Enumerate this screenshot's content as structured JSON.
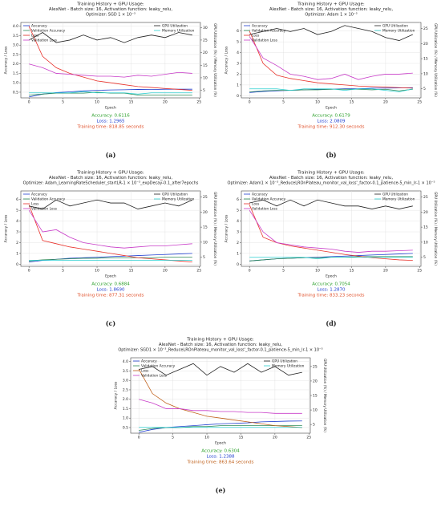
{
  "chart_data": [
    {
      "type": "line",
      "title": [
        "Training History + GPU Usage:",
        "AlexNet - Batch size: 16, Activation function: leaky_relu,",
        "Optimizer: SGD 1 × 10⁻³"
      ],
      "xlabel": "Epoch",
      "ylabel": "Accuracy / Loss",
      "y2label": "GPU Utilization (%) / Memory Utilization (%)",
      "x": [
        0,
        2,
        4,
        6,
        8,
        10,
        12,
        14,
        16,
        18,
        20,
        22,
        24
      ],
      "xlim": [
        -1.2,
        25.2
      ],
      "xticks": [
        0,
        5,
        10,
        15,
        20,
        25
      ],
      "ylim": [
        0.2,
        4.2
      ],
      "yticks": [
        0.5,
        {
          "value": 1,
          "label": "1.0"
        },
        1.5,
        {
          "value": 2,
          "label": "2.0"
        },
        2.5,
        {
          "value": 3,
          "label": "3.0"
        },
        3.5,
        {
          "value": 4,
          "label": "4.0"
        }
      ],
      "y2lim": [
        2,
        32
      ],
      "y2ticks": [
        5,
        10,
        15,
        20,
        25,
        30
      ],
      "grid": true,
      "legend": "upper left",
      "legend_y2": "upper right",
      "series": [
        {
          "name": "Accuracy",
          "color": "#1f3fd0",
          "values": [
            0.25,
            0.4,
            0.48,
            0.52,
            0.57,
            0.6,
            0.62,
            0.63,
            0.65,
            0.64,
            0.66,
            0.66,
            0.66
          ]
        },
        {
          "name": "Validation Accuracy",
          "color": "#2e8b57",
          "values": [
            0.35,
            0.4,
            0.45,
            0.45,
            0.45,
            0.5,
            0.45,
            0.45,
            0.35,
            0.35,
            0.35,
            0.35,
            0.35
          ]
        },
        {
          "name": "Loss",
          "color": "#e8312a",
          "values": [
            4.0,
            2.4,
            1.8,
            1.5,
            1.3,
            1.1,
            1.0,
            0.9,
            0.8,
            0.75,
            0.7,
            0.65,
            0.6
          ]
        },
        {
          "name": "Validation Loss",
          "color": "#c83cc8",
          "values": [
            2.0,
            1.8,
            1.5,
            1.45,
            1.4,
            1.35,
            1.35,
            1.3,
            1.4,
            1.35,
            1.45,
            1.55,
            1.5
          ]
        },
        {
          "name": "GPU Utilization",
          "color": "#222222",
          "axis": "y2",
          "values": [
            25,
            28,
            24,
            25,
            27,
            25,
            26,
            24,
            26,
            27,
            26,
            28,
            27
          ]
        },
        {
          "name": "Memory Utilization",
          "color": "#2ccfd0",
          "axis": "y2",
          "values": [
            4,
            4,
            4,
            4,
            4.5,
            4,
            4,
            4,
            3.5,
            4,
            4,
            4,
            4
          ]
        }
      ],
      "annotations": [
        {
          "text": "Accuracy: 0.6116",
          "color": "#2ca02c"
        },
        {
          "text": "Loss: 1.2965",
          "color": "#1f3fd0"
        },
        {
          "text": "Training time: 818.85 seconds",
          "color": "#e0502a"
        }
      ],
      "caption": "(a)"
    },
    {
      "type": "line",
      "title": [
        "Training History + GPU Usage:",
        "AlexNet - Batch size: 16, Activation function: leaky_relu,",
        "Optimizer: Adam 1 × 10⁻³"
      ],
      "xlabel": "Epoch",
      "ylabel": "Accuracy / Loss",
      "y2label": "GPU Utilization (%) / Memory Utilization (%)",
      "x": [
        0,
        2,
        4,
        6,
        8,
        10,
        12,
        14,
        16,
        18,
        20,
        22,
        24
      ],
      "xlim": [
        -1.2,
        25.2
      ],
      "xticks": [
        0,
        5,
        10,
        15,
        20,
        25
      ],
      "ylim": [
        -0.2,
        6.8
      ],
      "yticks": [
        0,
        1,
        2,
        3,
        4,
        5,
        6
      ],
      "y2lim": [
        2,
        27
      ],
      "y2ticks": [
        5,
        10,
        15,
        20,
        25
      ],
      "grid": true,
      "legend": "upper left",
      "legend_y2": "upper right",
      "series": [
        {
          "name": "Accuracy",
          "color": "#1f3fd0",
          "values": [
            0.3,
            0.4,
            0.45,
            0.5,
            0.55,
            0.6,
            0.6,
            0.65,
            0.65,
            0.7,
            0.7,
            0.72,
            0.75
          ]
        },
        {
          "name": "Validation Accuracy",
          "color": "#2e8b57",
          "values": [
            0.35,
            0.45,
            0.5,
            0.5,
            0.55,
            0.55,
            0.6,
            0.6,
            0.6,
            0.55,
            0.6,
            0.45,
            0.6
          ]
        },
        {
          "name": "Loss",
          "color": "#e8312a",
          "values": [
            6.0,
            3.0,
            1.9,
            1.6,
            1.4,
            1.2,
            1.1,
            1.0,
            0.9,
            0.85,
            0.8,
            0.75,
            0.7
          ]
        },
        {
          "name": "Validation Loss",
          "color": "#c83cc8",
          "values": [
            5.5,
            3.5,
            2.8,
            2.0,
            1.8,
            1.5,
            1.6,
            2.0,
            1.5,
            1.8,
            2.0,
            2.0,
            2.1
          ]
        },
        {
          "name": "GPU Utilization",
          "color": "#222222",
          "axis": "y2",
          "values": [
            23,
            24,
            25,
            24,
            25,
            23,
            24,
            26,
            25,
            24,
            22,
            21,
            23
          ]
        },
        {
          "name": "Memory Utilization",
          "color": "#2ccfd0",
          "axis": "y2",
          "values": [
            5,
            5,
            5,
            4.5,
            5,
            5,
            5,
            4.5,
            5,
            5,
            4.5,
            4,
            5
          ]
        }
      ],
      "annotations": [
        {
          "text": "Accuracy: 0.6179",
          "color": "#2ca02c"
        },
        {
          "text": "Loss: 2.0809",
          "color": "#1f3fd0"
        },
        {
          "text": "Training time: 912.30 seconds",
          "color": "#e0502a"
        }
      ],
      "caption": "(b)"
    },
    {
      "type": "line",
      "title": [
        "Training History + GPU Usage:",
        "AlexNet - Batch size: 16, Activation function: leaky_relu,",
        "Optimizer: Adam_LearningRateScheduler_startLR-1 × 10⁻³_expDecay-0.1_after7epochs"
      ],
      "xlabel": "Epoch",
      "ylabel": "Accuracy / Loss",
      "y2label": "GPU Utilization (%) / Memory Utilization (%)",
      "x": [
        0,
        2,
        4,
        6,
        8,
        10,
        12,
        14,
        16,
        18,
        20,
        22,
        24
      ],
      "xlim": [
        -1.2,
        25.2
      ],
      "xticks": [
        0,
        5,
        10,
        15,
        20,
        25
      ],
      "ylim": [
        -0.2,
        6.8
      ],
      "yticks": [
        0,
        1,
        2,
        3,
        4,
        5,
        6
      ],
      "y2lim": [
        2,
        27
      ],
      "y2ticks": [
        5,
        10,
        15,
        20,
        25
      ],
      "grid": true,
      "legend": "upper left",
      "legend_y2": "upper right",
      "series": [
        {
          "name": "Accuracy",
          "color": "#1f3fd0",
          "values": [
            0.2,
            0.35,
            0.45,
            0.55,
            0.6,
            0.65,
            0.7,
            0.75,
            0.8,
            0.85,
            0.9,
            0.95,
            1.0
          ]
        },
        {
          "name": "Validation Accuracy",
          "color": "#2e8b57",
          "values": [
            0.3,
            0.4,
            0.45,
            0.5,
            0.55,
            0.55,
            0.6,
            0.6,
            0.6,
            0.6,
            0.65,
            0.65,
            0.65
          ]
        },
        {
          "name": "Loss",
          "color": "#e8312a",
          "values": [
            5.5,
            2.2,
            1.9,
            1.6,
            1.4,
            1.2,
            1.0,
            0.8,
            0.6,
            0.5,
            0.4,
            0.3,
            0.2
          ]
        },
        {
          "name": "Validation Loss",
          "color": "#c83cc8",
          "values": [
            5.0,
            3.0,
            3.2,
            2.5,
            2.0,
            1.8,
            1.6,
            1.5,
            1.6,
            1.7,
            1.7,
            1.8,
            1.9
          ]
        },
        {
          "name": "GPU Utilization",
          "color": "#222222",
          "axis": "y2",
          "values": [
            22,
            21,
            24,
            22,
            23,
            24,
            23,
            23,
            21,
            22,
            23,
            22,
            24
          ]
        },
        {
          "name": "Memory Utilization",
          "color": "#2ccfd0",
          "axis": "y2",
          "values": [
            4,
            4,
            4,
            4,
            4,
            4,
            4,
            4,
            4,
            4,
            4,
            4,
            4
          ]
        }
      ],
      "annotations": [
        {
          "text": "Accuracy: 0.6884",
          "color": "#2ca02c"
        },
        {
          "text": "Loss: 1.8690",
          "color": "#1f3fd0"
        },
        {
          "text": "Training time: 877.31 seconds",
          "color": "#e0502a"
        }
      ],
      "caption": "(c)"
    },
    {
      "type": "line",
      "title": [
        "Training History + GPU Usage:",
        "AlexNet - Batch size: 16, Activation function: leaky_relu,",
        "Optimizer: Adam1 × 10⁻³_ReduceLROnPlateau_monitor_val_loss'_factor-0.1_patience-5_min_lr-1 × 10⁻⁵"
      ],
      "xlabel": "Epoch",
      "ylabel": "Accuracy / Loss",
      "y2label": "GPU Utilization (%) / Memory Utilization (%)",
      "x": [
        0,
        2,
        4,
        6,
        8,
        10,
        12,
        14,
        16,
        18,
        20,
        22,
        24
      ],
      "xlim": [
        -1.2,
        25.2
      ],
      "xticks": [
        0,
        5,
        10,
        15,
        20,
        25
      ],
      "ylim": [
        -0.2,
        6.8
      ],
      "yticks": [
        0,
        1,
        2,
        3,
        4,
        5,
        6
      ],
      "y2lim": [
        2,
        27
      ],
      "y2ticks": [
        5,
        10,
        15,
        20,
        25
      ],
      "grid": true,
      "legend": "upper left",
      "legend_y2": "upper right",
      "series": [
        {
          "name": "Accuracy",
          "color": "#1f3fd0",
          "values": [
            0.3,
            0.4,
            0.5,
            0.55,
            0.6,
            0.65,
            0.7,
            0.75,
            0.8,
            0.85,
            0.9,
            0.95,
            1.0
          ]
        },
        {
          "name": "Validation Accuracy",
          "color": "#2e8b57",
          "values": [
            0.3,
            0.4,
            0.5,
            0.55,
            0.6,
            0.6,
            0.65,
            0.65,
            0.7,
            0.7,
            0.7,
            0.7,
            0.7
          ]
        },
        {
          "name": "Loss",
          "color": "#e8312a",
          "values": [
            5.5,
            2.5,
            2.0,
            1.7,
            1.5,
            1.3,
            1.1,
            0.9,
            0.75,
            0.6,
            0.5,
            0.4,
            0.35
          ]
        },
        {
          "name": "Validation Loss",
          "color": "#c83cc8",
          "values": [
            5.0,
            3.0,
            2.0,
            1.8,
            1.6,
            1.5,
            1.4,
            1.2,
            1.1,
            1.2,
            1.2,
            1.25,
            1.3
          ]
        },
        {
          "name": "GPU Utilization",
          "color": "#222222",
          "axis": "y2",
          "values": [
            23,
            24,
            22,
            24,
            22,
            24,
            23,
            22,
            22,
            21,
            22,
            21,
            22
          ]
        },
        {
          "name": "Memory Utilization",
          "color": "#2ccfd0",
          "axis": "y2",
          "values": [
            5,
            5,
            5,
            5,
            5,
            4.5,
            5,
            5,
            5,
            5,
            5,
            5,
            5
          ]
        }
      ],
      "annotations": [
        {
          "text": "Accuracy: 0.7054",
          "color": "#2ca02c"
        },
        {
          "text": "Loss: 1.2870",
          "color": "#1f3fd0"
        },
        {
          "text": "Training time: 833.23 seconds",
          "color": "#e0502a"
        }
      ],
      "caption": "(d)"
    },
    {
      "type": "line",
      "title": [
        "Training History + GPU Usage:",
        "AlexNet - Batch size: 16, Activation function: leaky_relu,",
        "Optimizer: SGD1 × 10⁻³_ReduceLROnPlateau_monitor_val_loss'_factor-0.1_patience-5_min_lr-1 × 10⁻⁵"
      ],
      "xlabel": "Epoch",
      "ylabel": "Accuracy / Loss",
      "y2label": "GPU Utilization (%) / Memory Utilization (%)",
      "x": [
        0,
        2,
        4,
        6,
        8,
        10,
        12,
        14,
        16,
        18,
        20,
        22,
        24
      ],
      "xlim": [
        -1.2,
        25.2
      ],
      "xticks": [
        0,
        5,
        10,
        15,
        20,
        25
      ],
      "ylim": [
        0.2,
        4.2
      ],
      "yticks": [
        0.5,
        {
          "value": 1,
          "label": "1.0"
        },
        1.5,
        {
          "value": 2,
          "label": "2.0"
        },
        2.5,
        {
          "value": 3,
          "label": "3.0"
        },
        3.5,
        {
          "value": 4,
          "label": "4.0"
        }
      ],
      "y2lim": [
        2,
        28
      ],
      "y2ticks": [
        5,
        10,
        15,
        20,
        25
      ],
      "grid": true,
      "legend": "upper left",
      "legend_y2": "upper right",
      "series": [
        {
          "name": "Accuracy",
          "color": "#1f3fd0",
          "values": [
            0.25,
            0.4,
            0.5,
            0.55,
            0.6,
            0.65,
            0.7,
            0.72,
            0.75,
            0.8,
            0.82,
            0.84,
            0.85
          ]
        },
        {
          "name": "Validation Accuracy",
          "color": "#2e8b57",
          "values": [
            0.35,
            0.45,
            0.5,
            0.5,
            0.55,
            0.55,
            0.6,
            0.6,
            0.6,
            0.6,
            0.6,
            0.6,
            0.6
          ]
        },
        {
          "name": "Loss",
          "color": "#c0601a",
          "values": [
            3.6,
            2.3,
            1.8,
            1.5,
            1.3,
            1.1,
            1.0,
            0.9,
            0.8,
            0.7,
            0.6,
            0.55,
            0.5
          ]
        },
        {
          "name": "Validation Loss",
          "color": "#c83cc8",
          "values": [
            2.0,
            1.8,
            1.5,
            1.5,
            1.4,
            1.4,
            1.35,
            1.35,
            1.3,
            1.3,
            1.25,
            1.25,
            1.25
          ]
        },
        {
          "name": "GPU Utilization",
          "color": "#222222",
          "axis": "y2",
          "values": [
            24,
            25,
            22,
            24,
            26,
            22,
            25,
            23,
            26,
            23,
            25,
            22,
            23
          ]
        },
        {
          "name": "Memory Utilization",
          "color": "#2ccfd0",
          "axis": "y2",
          "values": [
            4,
            4,
            4,
            4,
            4,
            4,
            4,
            4,
            4,
            4,
            4,
            4,
            4
          ]
        }
      ],
      "annotations": [
        {
          "text": "Accuracy: 0.6304",
          "color": "#2ca02c"
        },
        {
          "text": "Loss: 1.2388",
          "color": "#1f3fd0"
        },
        {
          "text": "Training time: 863.64 seconds",
          "color": "#c0601a"
        }
      ],
      "caption": "(e)"
    }
  ]
}
